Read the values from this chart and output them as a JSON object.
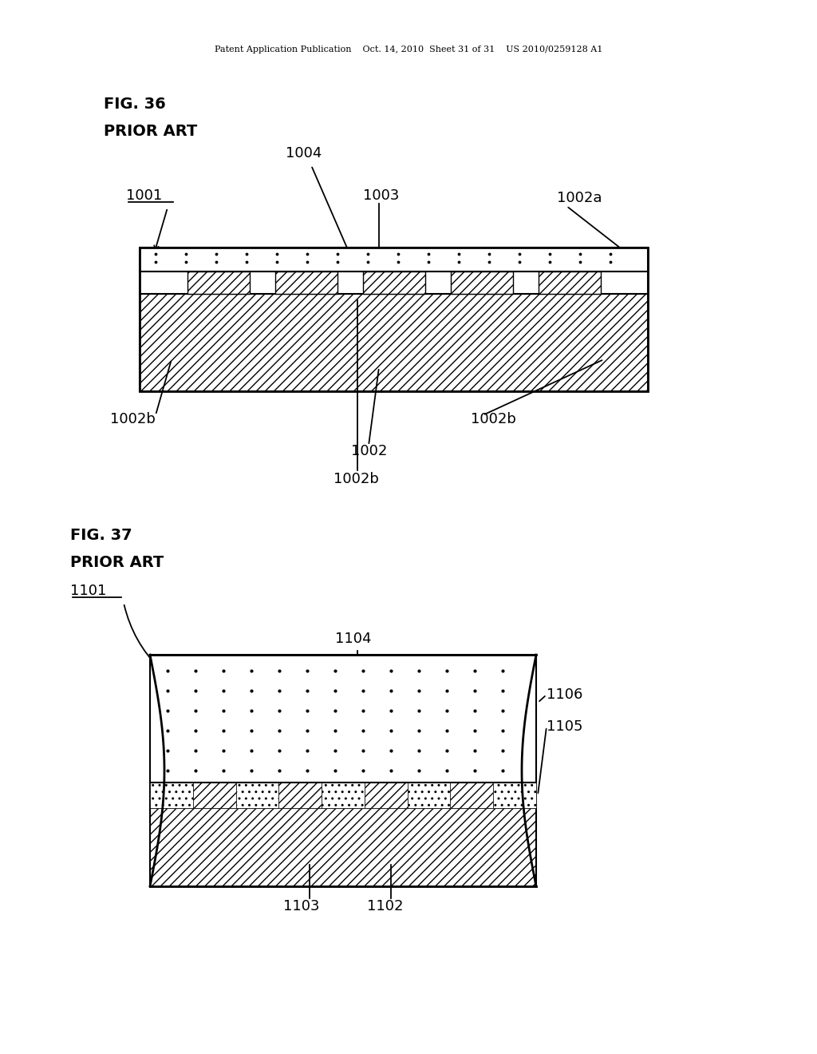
{
  "bg_color": "#ffffff",
  "header_text": "Patent Application Publication    Oct. 14, 2010  Sheet 31 of 31    US 2010/0259128 A1",
  "fig36_title": "FIG. 36",
  "fig36_subtitle": "PRIOR ART",
  "fig37_title": "FIG. 37",
  "fig37_subtitle": "PRIOR ART"
}
